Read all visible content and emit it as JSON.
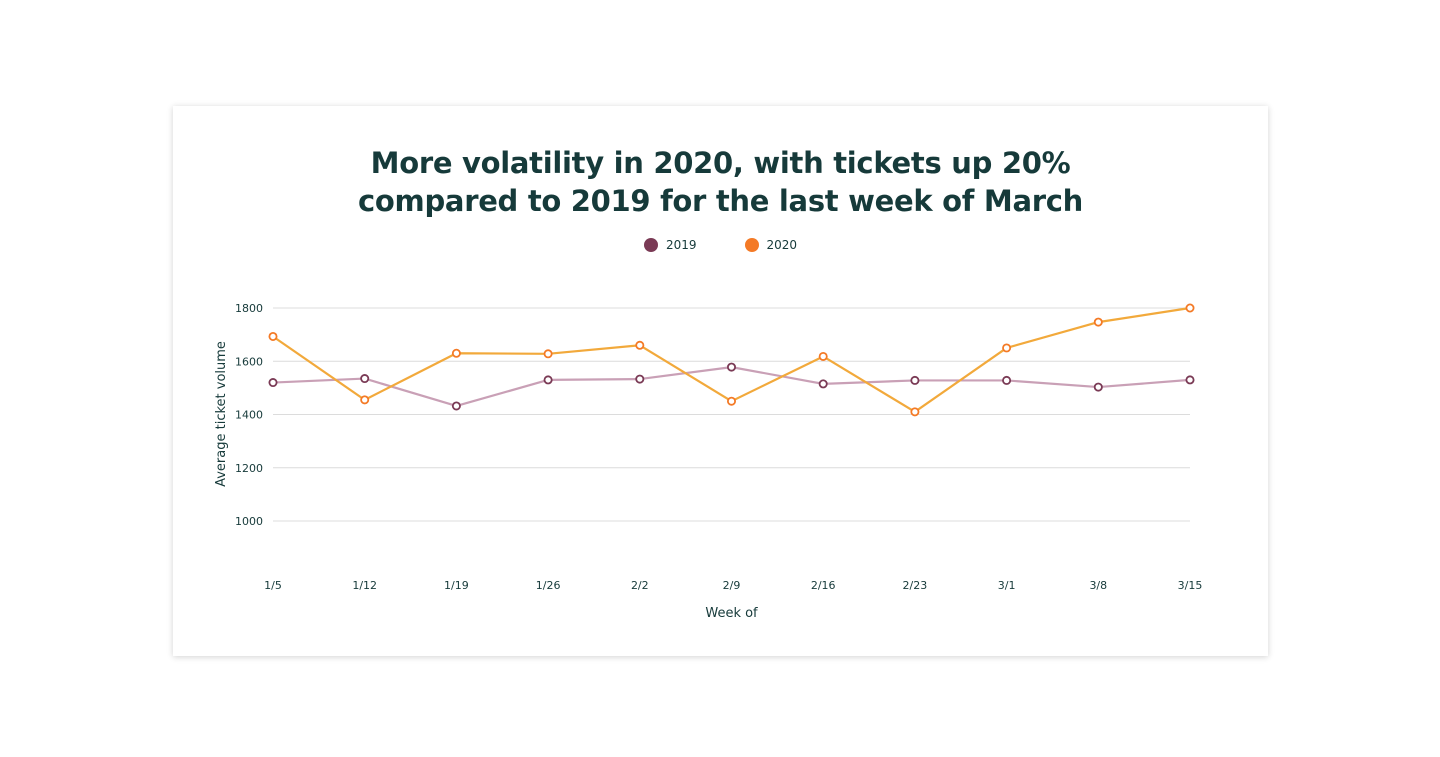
{
  "chart_data": {
    "type": "line",
    "title_lines": [
      "More volatility in 2020, with tickets up 20%",
      "compared to 2019 for the last week of March"
    ],
    "xlabel": "Week of",
    "ylabel": "Average ticket volume",
    "categories": [
      "1/5",
      "1/12",
      "1/19",
      "1/26",
      "2/2",
      "2/9",
      "2/16",
      "2/23",
      "3/1",
      "3/8",
      "3/15"
    ],
    "y_ticks": [
      1000,
      1200,
      1400,
      1600,
      1800
    ],
    "ylim": [
      1000,
      1800
    ],
    "grid": true,
    "legend_position": "top-center",
    "series": [
      {
        "name": "2019",
        "color": "#7a3a55",
        "line_color": "#c9a0b6",
        "values": [
          1520,
          1535,
          1432,
          1530,
          1533,
          1578,
          1515,
          1528,
          1528,
          1503,
          1530
        ]
      },
      {
        "name": "2020",
        "color": "#f47a26",
        "line_color": "#f2a93b",
        "values": [
          1693,
          1455,
          1630,
          1628,
          1660,
          1450,
          1618,
          1410,
          1650,
          1747,
          1800
        ]
      }
    ]
  }
}
